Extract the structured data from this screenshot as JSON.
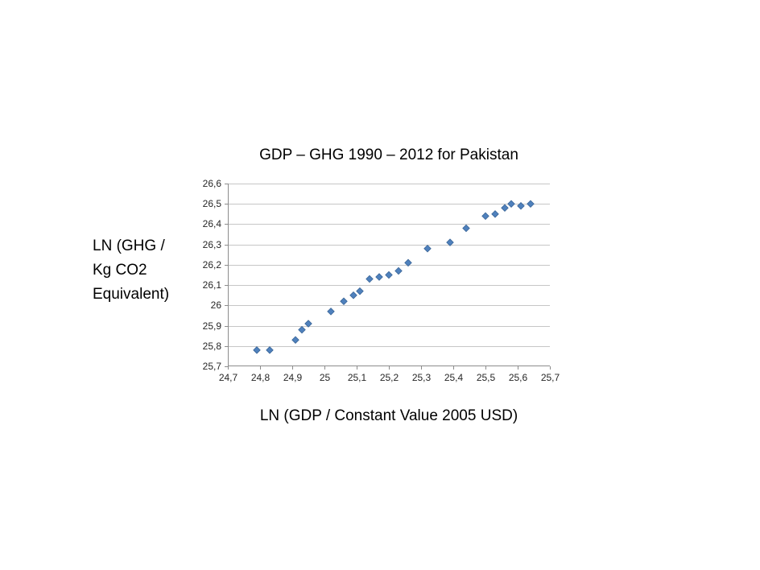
{
  "chart_data": {
    "type": "scatter",
    "title": "GDP – GHG 1990 – 2012 for Pakistan",
    "xlabel": "LN (GDP / Constant Value 2005 USD)",
    "ylabel_lines": [
      "LN (GHG /",
      "Kg CO2",
      "Equivalent)"
    ],
    "xlim": [
      24.7,
      25.7
    ],
    "ylim": [
      25.7,
      26.6
    ],
    "x_ticks": [
      "24,7",
      "24,8",
      "24,9",
      "25",
      "25,1",
      "25,2",
      "25,3",
      "25,4",
      "25,5",
      "25,6",
      "25,7"
    ],
    "y_ticks": [
      "25,7",
      "25,8",
      "25,9",
      "26",
      "26,1",
      "26,2",
      "26,3",
      "26,4",
      "26,5",
      "26,6"
    ],
    "grid": "horizontal",
    "legend": "none",
    "marker": "diamond",
    "marker_color": "#4F81BD",
    "marker_border_color": "#3A6597",
    "gridline_color": "#C6C6C6",
    "axis_color": "#8C8C8C",
    "points": [
      [
        24.79,
        25.78
      ],
      [
        24.83,
        25.78
      ],
      [
        24.91,
        25.83
      ],
      [
        24.93,
        25.88
      ],
      [
        24.95,
        25.91
      ],
      [
        25.02,
        25.97
      ],
      [
        25.06,
        26.02
      ],
      [
        25.09,
        26.05
      ],
      [
        25.11,
        26.07
      ],
      [
        25.14,
        26.13
      ],
      [
        25.17,
        26.14
      ],
      [
        25.2,
        26.15
      ],
      [
        25.23,
        26.17
      ],
      [
        25.26,
        26.21
      ],
      [
        25.32,
        26.28
      ],
      [
        25.39,
        26.31
      ],
      [
        25.44,
        26.38
      ],
      [
        25.5,
        26.44
      ],
      [
        25.53,
        26.45
      ],
      [
        25.56,
        26.48
      ],
      [
        25.58,
        26.5
      ],
      [
        25.61,
        26.49
      ],
      [
        25.64,
        26.5
      ]
    ]
  }
}
